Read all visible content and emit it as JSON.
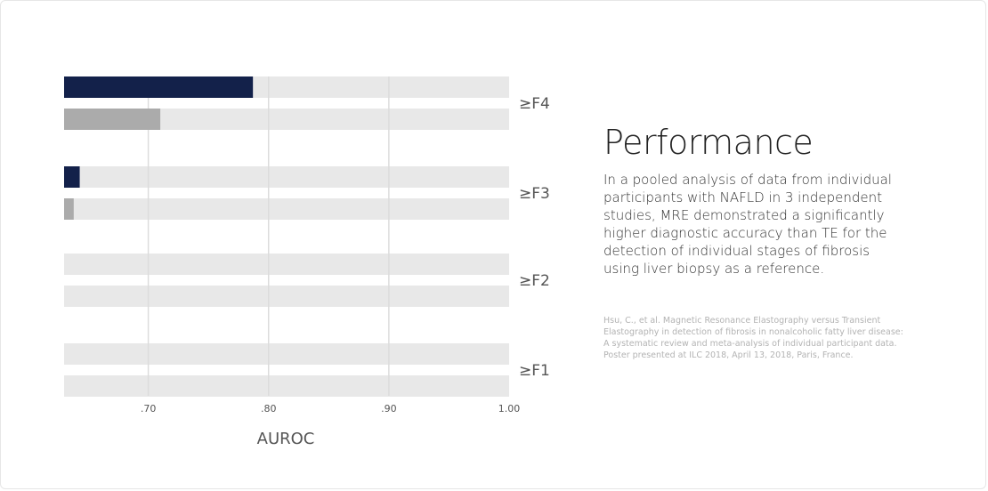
{
  "text_panel": {
    "title": "Performance",
    "body": "In a pooled analysis of data from individual participants with NAFLD in 3 independent studies, MRE demonstrated a significantly higher diagnostic accuracy than TE for the detection of individual stages of fibrosis using liver biopsy as a reference.",
    "citation": "Hsu, C., et al. Magnetic Resonance Elastography versus Transient Elastography in detection of fibrosis in nonalcoholic fatty liver disease: A systematic review and meta-analysis of individual participant data. Poster presented at ILC 2018, April 13, 2018, Paris, France."
  },
  "chart_data": {
    "type": "bar",
    "orientation": "horizontal",
    "xlabel": "AUROC",
    "xlim": [
      0.63,
      1.0
    ],
    "xticks": [
      0.7,
      0.8,
      0.9,
      1.0
    ],
    "xtick_labels": [
      ".70",
      ".80",
      ".90",
      "1.00"
    ],
    "grid": true,
    "categories": [
      "≥F4",
      "≥F3",
      "≥F2",
      "≥F1"
    ],
    "series": [
      {
        "color": "#13214a",
        "values": [
          0.787,
          0.643,
          null,
          null
        ]
      },
      {
        "color": "#ababab",
        "values": [
          0.71,
          0.638,
          null,
          null
        ]
      }
    ],
    "track_color": "#e8e8e8"
  }
}
